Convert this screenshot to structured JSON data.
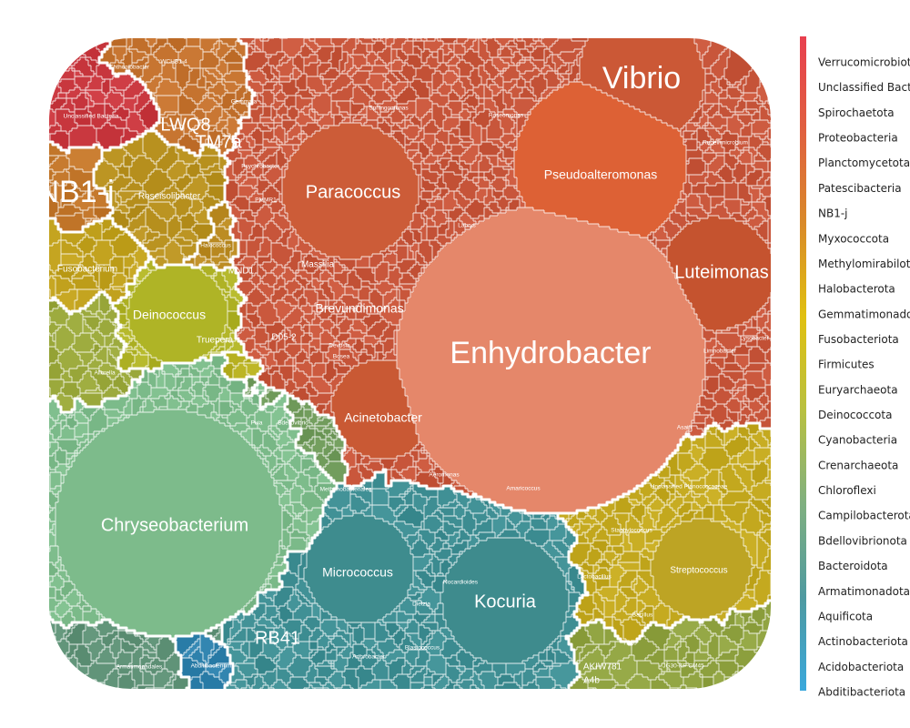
{
  "chart_data": {
    "type": "voronoi-treemap",
    "level": "genus",
    "groups": [
      {
        "phylum": "Verrucomicrobiota",
        "color": "#e2424a",
        "genera": []
      },
      {
        "phylum": "Unclassified Bacteria",
        "color": "#c9383f",
        "genera": [
          {
            "name": "Unclassified Bacteria",
            "value": 3
          }
        ]
      },
      {
        "phylum": "Spirochaetota",
        "color": "#c0453a",
        "genera": [
          {
            "name": "Chthoniobacter",
            "value": 1
          }
        ]
      },
      {
        "phylum": "Proteobacteria",
        "color": "#c7553a",
        "genera": [
          {
            "name": "Enhydrobacter",
            "value": 34
          },
          {
            "name": "Paracoccus",
            "value": 8
          },
          {
            "name": "Vibrio",
            "value": 6
          },
          {
            "name": "Pseudoalteromonas",
            "value": 9
          },
          {
            "name": "Luteimonas",
            "value": 4
          },
          {
            "name": "Acinetobacter",
            "value": 5
          },
          {
            "name": "Brevundimonas",
            "value": 3
          },
          {
            "name": "Massilia",
            "value": 2
          },
          {
            "name": "Sphingomonas",
            "value": 1.5
          },
          {
            "name": "Roseomonas",
            "value": 1
          },
          {
            "name": "Rubellimicrobium",
            "value": 1
          },
          {
            "name": "Psychrobacter",
            "value": 1
          },
          {
            "name": "D05-2",
            "value": 1
          },
          {
            "name": "Devosia",
            "value": 1
          },
          {
            "name": "Bosea",
            "value": 1
          },
          {
            "name": "PMMR1",
            "value": 1
          },
          {
            "name": "MND1",
            "value": 1
          },
          {
            "name": "Limnobacter",
            "value": 1
          },
          {
            "name": "Lysobacter",
            "value": 1
          },
          {
            "name": "Asaia",
            "value": 0.5
          },
          {
            "name": "Amaricoccus",
            "value": 0.5
          },
          {
            "name": "Labrys",
            "value": 0.5
          },
          {
            "name": "Aeromonas",
            "value": 0.5
          }
        ]
      },
      {
        "phylum": "Planctomycetota",
        "color": "#c7683a",
        "genera": [
          {
            "name": "Gemmata",
            "value": 1
          }
        ]
      },
      {
        "phylum": "Patescibacteria",
        "color": "#c4722e",
        "genera": [
          {
            "name": "WCHB1-4",
            "value": 1
          },
          {
            "name": "LWQ8",
            "value": 1.5
          },
          {
            "name": "TM7a",
            "value": 1.5
          }
        ]
      },
      {
        "phylum": "NB1-j",
        "color": "#c2762a",
        "genera": [
          {
            "name": "NB1-j",
            "value": 2
          }
        ]
      },
      {
        "phylum": "Myxococcota",
        "color": "#bf7d26",
        "genera": []
      },
      {
        "phylum": "Methylomirabilota",
        "color": "#bd8424",
        "genera": []
      },
      {
        "phylum": "Halobacterota",
        "color": "#bb8b22",
        "genera": [
          {
            "name": "Halococcus",
            "value": 1
          }
        ]
      },
      {
        "phylum": "Gemmatimonadota",
        "color": "#b99220",
        "genera": [
          {
            "name": "Roseisolibacter",
            "value": 2.5
          }
        ]
      },
      {
        "phylum": "Fusobacteriota",
        "color": "#c0a01c",
        "genera": [
          {
            "name": "Fusobacterium",
            "value": 3
          }
        ]
      },
      {
        "phylum": "Firmicutes",
        "color": "#c3a81e",
        "genera": [
          {
            "name": "Unclassified Planococcaceae",
            "value": 3
          },
          {
            "name": "Streptococcus",
            "value": 3
          },
          {
            "name": "Staphylococcus",
            "value": 2
          },
          {
            "name": "Lactobacillus",
            "value": 1.5
          },
          {
            "name": "Bacillus",
            "value": 1
          }
        ]
      },
      {
        "phylum": "Euryarchaeota",
        "color": "#b7b020",
        "genera": [
          {
            "name": "Methanobacteriales",
            "value": 1
          }
        ]
      },
      {
        "phylum": "Deinococcota",
        "color": "#b0b326",
        "genera": [
          {
            "name": "Deinococcus",
            "value": 4
          },
          {
            "name": "Truepera",
            "value": 1.5
          }
        ]
      },
      {
        "phylum": "Cyanobacteria",
        "color": "#a3ab30",
        "genera": []
      },
      {
        "phylum": "Crenarchaeota",
        "color": "#99a73a",
        "genera": [
          {
            "name": "Allorella",
            "value": 1
          }
        ]
      },
      {
        "phylum": "Chloroflexi",
        "color": "#8fa240",
        "genera": [
          {
            "name": "JG30-KF-CM45",
            "value": 1.5
          },
          {
            "name": "AKIW781",
            "value": 1
          },
          {
            "name": "TK10",
            "value": 0.5
          },
          {
            "name": "A4b",
            "value": 0.5
          }
        ]
      },
      {
        "phylum": "Campilobacterota",
        "color": "#85a14c",
        "genera": []
      },
      {
        "phylum": "Bdellovibrionota",
        "color": "#6f9a5a",
        "genera": [
          {
            "name": "Bdellovibrio",
            "value": 1
          }
        ]
      },
      {
        "phylum": "Bacteroidota",
        "color": "#7cbb8a",
        "genera": [
          {
            "name": "Chryseobacterium",
            "value": 30
          },
          {
            "name": "Puia",
            "value": 0.5
          }
        ]
      },
      {
        "phylum": "Armatimonadota",
        "color": "#5f9277",
        "genera": [
          {
            "name": "Armatimonadales",
            "value": 2
          }
        ]
      },
      {
        "phylum": "Aquificota",
        "color": "#4f9289",
        "genera": []
      },
      {
        "phylum": "Actinobacteriota",
        "color": "#3e8e93",
        "genera": [
          {
            "name": "Kocuria",
            "value": 6
          },
          {
            "name": "Micrococcus",
            "value": 4
          },
          {
            "name": "RB41",
            "value": 2
          },
          {
            "name": "Blastococcus",
            "value": 1
          },
          {
            "name": "Arthrobacter",
            "value": 1
          },
          {
            "name": "Dietzia",
            "value": 0.5
          },
          {
            "name": "Nocardioides",
            "value": 0.5
          }
        ]
      },
      {
        "phylum": "Acidobacteriota",
        "color": "#36849f",
        "genera": []
      },
      {
        "phylum": "Abditibacteriota",
        "color": "#2f82ad",
        "genera": [
          {
            "name": "Abditibacterium",
            "value": 1.5
          }
        ]
      }
    ],
    "labels": [
      {
        "name": "Enhydrobacter",
        "size": "xl"
      },
      {
        "name": "Chryseobacterium",
        "size": "l"
      },
      {
        "name": "Vibrio",
        "size": "xl"
      },
      {
        "name": "Paracoccus",
        "size": "l"
      },
      {
        "name": "Pseudoalteromonas",
        "size": "m"
      },
      {
        "name": "Luteimonas",
        "size": "l"
      },
      {
        "name": "Kocuria",
        "size": "l"
      },
      {
        "name": "Micrococcus",
        "size": "m"
      },
      {
        "name": "Acinetobacter",
        "size": "m"
      },
      {
        "name": "Brevundimonas",
        "size": "m"
      },
      {
        "name": "Deinococcus",
        "size": "m"
      },
      {
        "name": "Fusobacterium",
        "size": "s"
      },
      {
        "name": "Roseisolibacter",
        "size": "s"
      },
      {
        "name": "NB1-j",
        "size": "xl"
      },
      {
        "name": "LWQ8",
        "size": "l"
      },
      {
        "name": "TM7a",
        "size": "l"
      },
      {
        "name": "RB41",
        "size": "l"
      },
      {
        "name": "Streptococcus",
        "size": "s"
      },
      {
        "name": "Massilia",
        "size": "s"
      },
      {
        "name": "Truepera",
        "size": "s"
      },
      {
        "name": "Unclassified Bacteria",
        "size": "xs"
      },
      {
        "name": "Chthoniobacter",
        "size": "xs"
      },
      {
        "name": "WCHB1-4",
        "size": "xs"
      },
      {
        "name": "Gemmata",
        "size": "xs"
      },
      {
        "name": "Sphingomonas",
        "size": "xs"
      },
      {
        "name": "Roseomonas",
        "size": "xs"
      },
      {
        "name": "Rubellimicrobium",
        "size": "xs"
      },
      {
        "name": "Psychrobacter",
        "size": "xs"
      },
      {
        "name": "PMMR1",
        "size": "xs"
      },
      {
        "name": "MND1",
        "size": "s"
      },
      {
        "name": "D05-2",
        "size": "s"
      },
      {
        "name": "Bosea",
        "size": "xs"
      },
      {
        "name": "Devosia",
        "size": "xs"
      },
      {
        "name": "Labrys",
        "size": "xs"
      },
      {
        "name": "Limnobacter",
        "size": "xs"
      },
      {
        "name": "Lysobacter",
        "size": "xs"
      },
      {
        "name": "Asaia",
        "size": "xs"
      },
      {
        "name": "Amaricoccus",
        "size": "xs"
      },
      {
        "name": "Aeromonas",
        "size": "xs"
      },
      {
        "name": "Halococcus",
        "size": "xs"
      },
      {
        "name": "Allorella",
        "size": "xs"
      },
      {
        "name": "Puia",
        "size": "xs"
      },
      {
        "name": "Bdellovibrio",
        "size": "xs"
      },
      {
        "name": "Methanobacteriales",
        "size": "xs"
      },
      {
        "name": "Armatimonadales",
        "size": "xs"
      },
      {
        "name": "Abditibacterium",
        "size": "xs"
      },
      {
        "name": "Blastococcus",
        "size": "xs"
      },
      {
        "name": "Arthrobacter",
        "size": "xs"
      },
      {
        "name": "Dietzia",
        "size": "xs"
      },
      {
        "name": "Nocardioides",
        "size": "xs"
      },
      {
        "name": "Unclassified Planococcaceae",
        "size": "xs"
      },
      {
        "name": "Staphylococcus",
        "size": "xs"
      },
      {
        "name": "Lactobacillus",
        "size": "xs"
      },
      {
        "name": "Bacillus",
        "size": "xs"
      },
      {
        "name": "JG30-KF-CM45",
        "size": "xs"
      },
      {
        "name": "AKIW781",
        "size": "s"
      },
      {
        "name": "TK10",
        "size": "xs"
      },
      {
        "name": "A4b",
        "size": "s"
      }
    ],
    "legend": {
      "placement": "right",
      "items": [
        "Verrucomicrobiota",
        "Unclassified Bacteria",
        "Spirochaetota",
        "Proteobacteria",
        "Planctomycetota",
        "Patescibacteria",
        "NB1-j",
        "Myxococcota",
        "Methylomirabilota",
        "Halobacterota",
        "Gemmatimonadota",
        "Fusobacteriota",
        "Firmicutes",
        "Euryarchaeota",
        "Deinococcota",
        "Cyanobacteria",
        "Crenarchaeota",
        "Chloroflexi",
        "Campilobacterota",
        "Bdellovibrionota",
        "Bacteroidota",
        "Armatimonadota",
        "Aquificota",
        "Actinobacteriota",
        "Acidobacteriota",
        "Abditibacteriota"
      ],
      "gradient": [
        "#e8404f",
        "#e06040",
        "#d98a2a",
        "#e0c010",
        "#b8c040",
        "#80b080",
        "#4f9aa0",
        "#3aa8dc"
      ]
    },
    "border_color": "#ffffff"
  }
}
